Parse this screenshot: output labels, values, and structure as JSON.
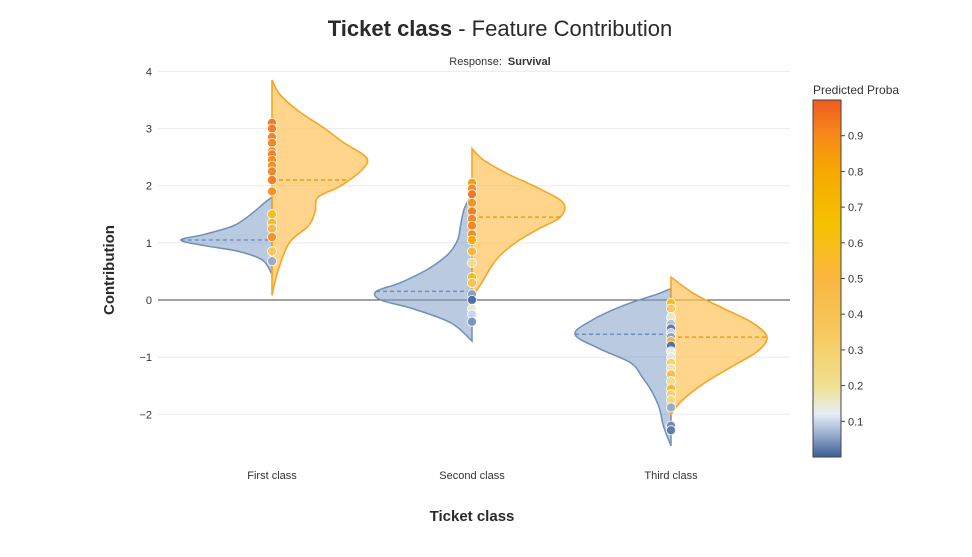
{
  "title_bold": "Ticket class",
  "title_rest": " - Feature Contribution",
  "subtitle_prefix": "Response:",
  "subtitle_value": "Survival",
  "colors": {
    "negative_fill": "#7f9fc8",
    "negative_line": "#6f8fb8",
    "positive_fill": "#ffc35a",
    "positive_line": "#f5a623",
    "baseline": "#444444"
  },
  "chart_data": {
    "type": "violin",
    "xlabel": "Ticket class",
    "ylabel": "Contribution",
    "ylim": [
      -2.8,
      4.2
    ],
    "yticks": [
      4,
      3,
      2,
      1,
      0,
      -1,
      -2
    ],
    "ytick_labels": [
      "4",
      "3",
      "2",
      "1",
      "0",
      "−1",
      "−2"
    ],
    "categories": [
      "First class",
      "Second class",
      "Third class"
    ],
    "grid": true,
    "colorbar": {
      "title": "Predicted Proba",
      "range": [
        0,
        1
      ],
      "ticks": [
        0.1,
        0.2,
        0.3,
        0.4,
        0.5,
        0.6,
        0.7,
        0.8,
        0.9
      ],
      "tick_labels": [
        "0.1",
        "0.2",
        "0.3",
        "0.4",
        "0.5",
        "0.6",
        "0.7",
        "0.8",
        "0.9"
      ],
      "stops": [
        {
          "v": 0.0,
          "c": "#3e5c95"
        },
        {
          "v": 0.06,
          "c": "#93a9cc"
        },
        {
          "v": 0.12,
          "c": "#e6eef6"
        },
        {
          "v": 0.2,
          "c": "#f0e090"
        },
        {
          "v": 0.35,
          "c": "#f7c95d"
        },
        {
          "v": 0.5,
          "c": "#f9b640"
        },
        {
          "v": 0.65,
          "c": "#f5c200"
        },
        {
          "v": 0.8,
          "c": "#f7a800"
        },
        {
          "v": 0.9,
          "c": "#f78a18"
        },
        {
          "v": 1.0,
          "c": "#f15a22"
        }
      ]
    },
    "groups": [
      {
        "category": "First class",
        "negative": {
          "median": 1.05,
          "profile": [
            [
              0.45,
              0
            ],
            [
              0.7,
              0.1
            ],
            [
              0.85,
              0.35
            ],
            [
              0.95,
              0.7
            ],
            [
              1.05,
              0.95
            ],
            [
              1.15,
              0.7
            ],
            [
              1.3,
              0.4
            ],
            [
              1.5,
              0.22
            ],
            [
              1.7,
              0.08
            ],
            [
              1.8,
              0
            ]
          ]
        },
        "positive": {
          "median": 2.1,
          "profile": [
            [
              0.08,
              0
            ],
            [
              0.5,
              0.06
            ],
            [
              1.0,
              0.18
            ],
            [
              1.3,
              0.38
            ],
            [
              1.55,
              0.45
            ],
            [
              1.8,
              0.48
            ],
            [
              2.0,
              0.72
            ],
            [
              2.3,
              0.95
            ],
            [
              2.5,
              0.98
            ],
            [
              2.75,
              0.75
            ],
            [
              3.0,
              0.55
            ],
            [
              3.3,
              0.28
            ],
            [
              3.6,
              0.08
            ],
            [
              3.85,
              0
            ]
          ]
        },
        "points": [
          {
            "y": 3.1,
            "p": 0.95
          },
          {
            "y": 3.0,
            "p": 0.94
          },
          {
            "y": 2.85,
            "p": 0.93
          },
          {
            "y": 2.75,
            "p": 0.92
          },
          {
            "y": 2.6,
            "p": 0.93
          },
          {
            "y": 2.55,
            "p": 0.92
          },
          {
            "y": 2.45,
            "p": 0.91
          },
          {
            "y": 2.35,
            "p": 0.9
          },
          {
            "y": 2.25,
            "p": 0.92
          },
          {
            "y": 2.1,
            "p": 0.94
          },
          {
            "y": 1.9,
            "p": 0.88
          },
          {
            "y": 1.5,
            "p": 0.6
          },
          {
            "y": 1.35,
            "p": 0.55
          },
          {
            "y": 1.25,
            "p": 0.5
          },
          {
            "y": 1.1,
            "p": 0.88
          },
          {
            "y": 0.85,
            "p": 0.35
          },
          {
            "y": 0.68,
            "p": 0.06
          }
        ]
      },
      {
        "category": "Second class",
        "negative": {
          "median": 0.15,
          "profile": [
            [
              -0.72,
              0
            ],
            [
              -0.4,
              0.22
            ],
            [
              -0.15,
              0.62
            ],
            [
              0.0,
              0.95
            ],
            [
              0.15,
              1.0
            ],
            [
              0.3,
              0.75
            ],
            [
              0.55,
              0.45
            ],
            [
              0.8,
              0.25
            ],
            [
              1.05,
              0.15
            ],
            [
              1.3,
              0.12
            ],
            [
              1.6,
              0.08
            ],
            [
              1.85,
              0
            ]
          ]
        },
        "positive": {
          "median": 1.45,
          "profile": [
            [
              0.05,
              0
            ],
            [
              0.3,
              0.1
            ],
            [
              0.7,
              0.25
            ],
            [
              1.0,
              0.45
            ],
            [
              1.25,
              0.7
            ],
            [
              1.45,
              0.92
            ],
            [
              1.7,
              0.95
            ],
            [
              1.95,
              0.7
            ],
            [
              2.2,
              0.38
            ],
            [
              2.45,
              0.12
            ],
            [
              2.65,
              0
            ]
          ]
        },
        "points": [
          {
            "y": 2.05,
            "p": 0.85
          },
          {
            "y": 1.95,
            "p": 0.9
          },
          {
            "y": 1.85,
            "p": 0.95
          },
          {
            "y": 1.7,
            "p": 0.88
          },
          {
            "y": 1.55,
            "p": 0.93
          },
          {
            "y": 1.42,
            "p": 0.91
          },
          {
            "y": 1.3,
            "p": 0.92
          },
          {
            "y": 1.15,
            "p": 0.9
          },
          {
            "y": 1.05,
            "p": 0.8
          },
          {
            "y": 0.85,
            "p": 0.5
          },
          {
            "y": 0.65,
            "p": 0.2
          },
          {
            "y": 0.4,
            "p": 0.6
          },
          {
            "y": 0.3,
            "p": 0.4
          },
          {
            "y": 0.1,
            "p": 0.05
          },
          {
            "y": 0.0,
            "p": 0.01
          },
          {
            "y": -0.15,
            "p": 0.15
          },
          {
            "y": -0.25,
            "p": 0.1
          },
          {
            "y": -0.38,
            "p": 0.04
          }
        ]
      },
      {
        "category": "Third class",
        "negative": {
          "median": -0.6,
          "profile": [
            [
              -2.55,
              0
            ],
            [
              -2.2,
              0.08
            ],
            [
              -1.9,
              0.12
            ],
            [
              -1.6,
              0.2
            ],
            [
              -1.35,
              0.3
            ],
            [
              -1.1,
              0.42
            ],
            [
              -0.85,
              0.75
            ],
            [
              -0.6,
              1.0
            ],
            [
              -0.35,
              0.82
            ],
            [
              -0.1,
              0.5
            ],
            [
              0.1,
              0.15
            ],
            [
              0.2,
              0
            ]
          ]
        },
        "positive": {
          "median": -0.65,
          "profile": [
            [
              -2.0,
              0
            ],
            [
              -1.75,
              0.12
            ],
            [
              -1.45,
              0.35
            ],
            [
              -1.15,
              0.65
            ],
            [
              -0.9,
              0.9
            ],
            [
              -0.65,
              1.0
            ],
            [
              -0.4,
              0.85
            ],
            [
              -0.15,
              0.55
            ],
            [
              0.1,
              0.25
            ],
            [
              0.4,
              0
            ]
          ]
        },
        "points": [
          {
            "y": -0.05,
            "p": 0.6
          },
          {
            "y": -0.15,
            "p": 0.35
          },
          {
            "y": -0.3,
            "p": 0.15
          },
          {
            "y": -0.42,
            "p": 0.08
          },
          {
            "y": -0.5,
            "p": 0.02
          },
          {
            "y": -0.58,
            "p": 0.1
          },
          {
            "y": -0.65,
            "p": 0.05
          },
          {
            "y": -0.72,
            "p": 0.5
          },
          {
            "y": -0.8,
            "p": 0.01
          },
          {
            "y": -0.9,
            "p": 0.12
          },
          {
            "y": -1.0,
            "p": 0.15
          },
          {
            "y": -1.1,
            "p": 0.3
          },
          {
            "y": -1.2,
            "p": 0.18
          },
          {
            "y": -1.3,
            "p": 0.45
          },
          {
            "y": -1.42,
            "p": 0.2
          },
          {
            "y": -1.55,
            "p": 0.55
          },
          {
            "y": -1.65,
            "p": 0.3
          },
          {
            "y": -1.75,
            "p": 0.25
          },
          {
            "y": -1.88,
            "p": 0.06
          },
          {
            "y": -2.2,
            "p": 0.03
          },
          {
            "y": -2.28,
            "p": 0.02
          }
        ]
      }
    ]
  }
}
